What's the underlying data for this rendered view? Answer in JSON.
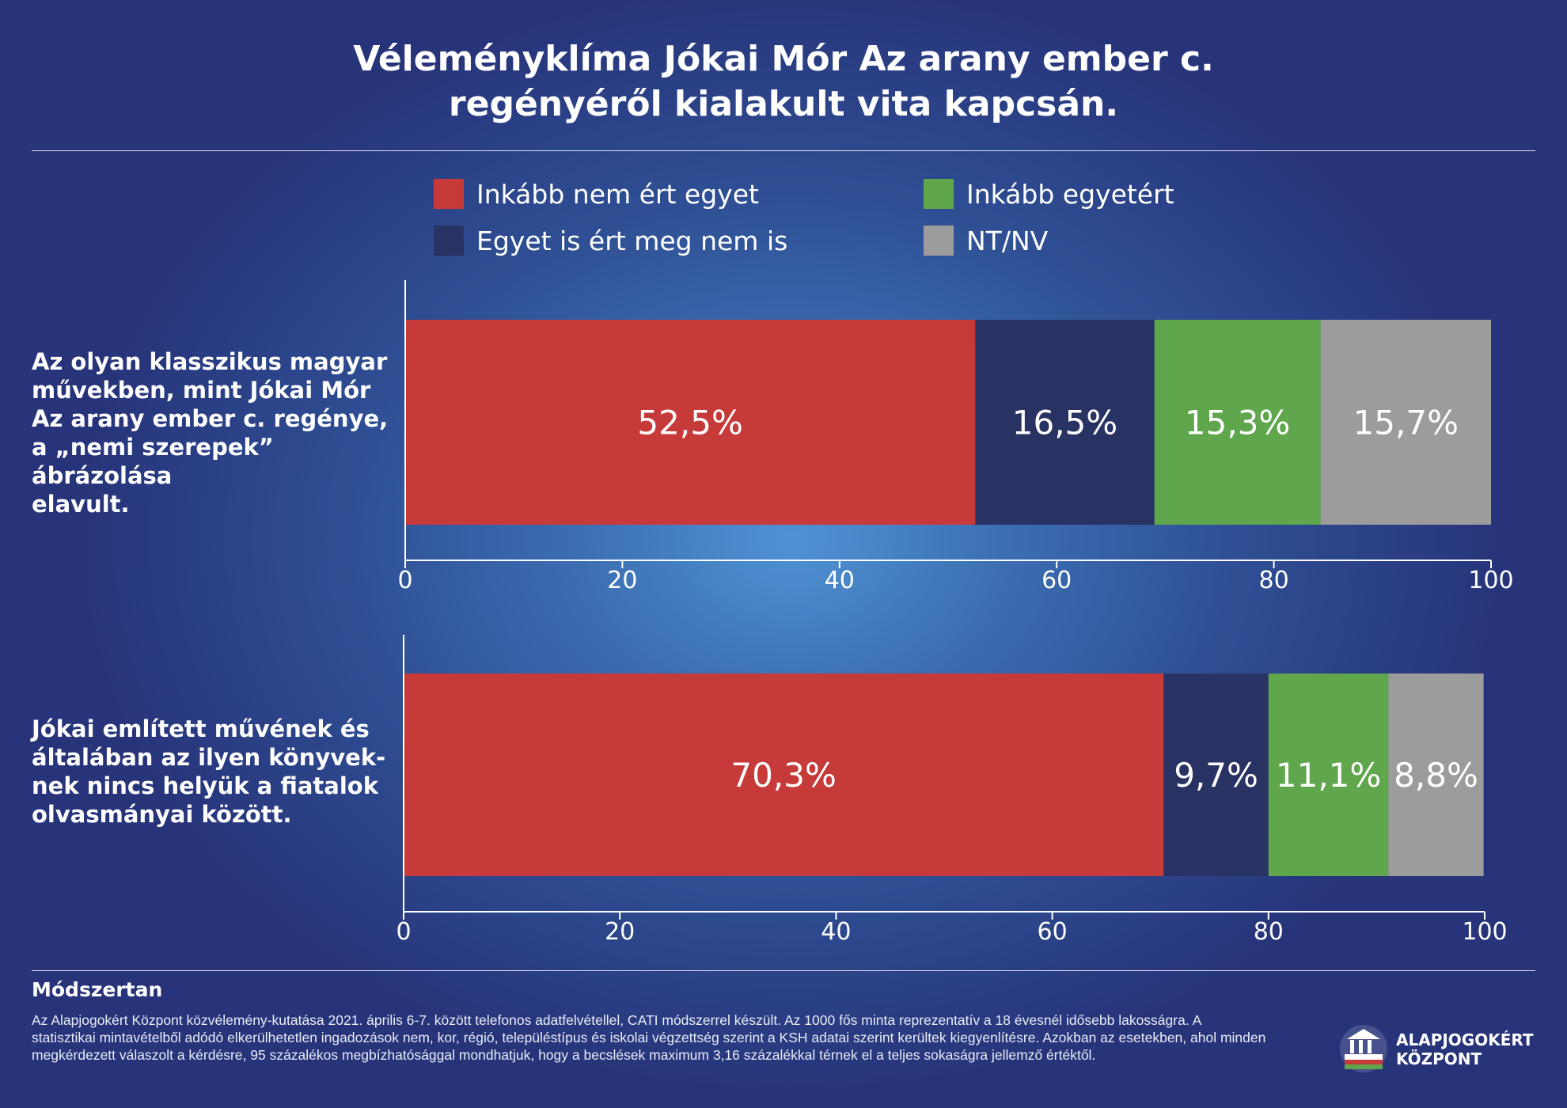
{
  "title": {
    "line1": "Véleményklíma Jókai Mór Az arany ember c.",
    "line2": "regényéről kialakult vita kapcsán."
  },
  "legend": [
    {
      "label": "Inkább nem ért egyet",
      "color": "#c73a3a"
    },
    {
      "label": "Inkább egyetért",
      "color": "#5fa64c"
    },
    {
      "label": "Egyet is ért meg nem is",
      "color": "#283363"
    },
    {
      "label": "NT/NV",
      "color": "#9c9c9c"
    }
  ],
  "chart_data": {
    "type": "bar",
    "orientation": "horizontal",
    "stacked": true,
    "xlim": [
      0,
      100
    ],
    "xticks": [
      "0",
      "20",
      "40",
      "60",
      "80",
      "100"
    ],
    "series_order": [
      "Inkább nem ért egyet",
      "Egyet is ért meg nem is",
      "Inkább egyetért",
      "NT/NV"
    ],
    "colors": [
      "#c73a3a",
      "#283363",
      "#5fa64c",
      "#9c9c9c"
    ],
    "bars": [
      {
        "label": [
          "Az olyan klasszikus magyar",
          "művekben, mint Jókai Mór",
          "Az arany ember c. regénye,",
          "a „nemi szerepek” ábrázolása",
          "elavult."
        ],
        "values": [
          52.5,
          16.5,
          15.3,
          15.7
        ],
        "value_labels": [
          "52,5%",
          "16,5%",
          "15,3%",
          "15,7%"
        ]
      },
      {
        "label": [
          "Jókai említett művének és",
          "általában az ilyen könyvek-",
          "nek nincs helyük a fiatalok",
          "olvasmányai között."
        ],
        "values": [
          70.3,
          9.7,
          11.1,
          8.8
        ],
        "value_labels": [
          "70,3%",
          "9,7%",
          "11,1%",
          "8,8%"
        ]
      }
    ]
  },
  "methodology": {
    "title": "Módszertan",
    "text": "Az Alapjogokért Központ közvélemény-kutatása 2021. április 6-7. között telefonos adatfelvétellel, CATI módszerrel készült. Az 1000 fős minta reprezentatív a 18 évesnél idősebb lakosságra. A statisztikai mintavételből adódó elkerülhetetlen ingadozások nem, kor, régió, településtípus és iskolai végzettség szerint a KSH adatai szerint kerültek kiegyenlítésre. Azokban az esetekben, ahol minden megkérdezett válaszolt a kérdésre, 95 százalékos megbízhatósággal mondhatjuk, hogy a becslések maximum 3,16 százalékkal térnek el a teljes sokaságra jellemző értéktől."
  },
  "logo": {
    "line1": "ALAPJOGOKÉRT",
    "line2": "KÖZPONT"
  }
}
